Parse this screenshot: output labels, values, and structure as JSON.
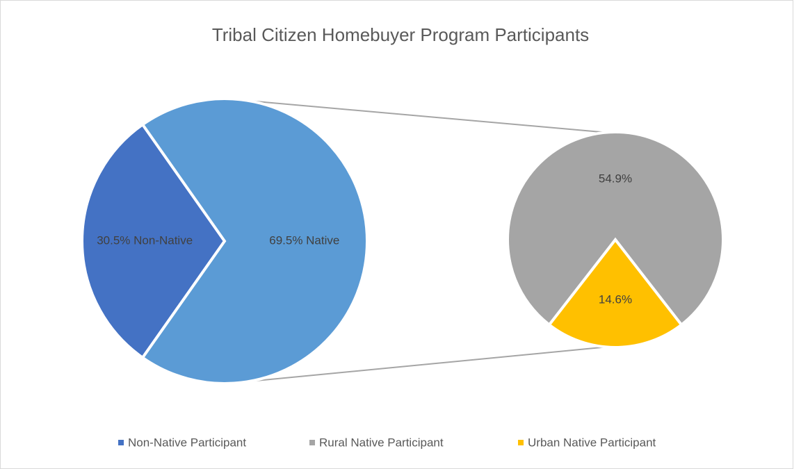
{
  "chart_data": {
    "type": "pie-of-pie",
    "title": "Tribal Citizen Homebuyer Program Participants",
    "main": {
      "values": [
        30.5,
        69.5
      ],
      "value_labels": [
        "30.5% Non-Native",
        "69.5% Native"
      ],
      "colors": [
        "#4472c4",
        "#5b9bd5"
      ]
    },
    "secondary": {
      "values": [
        54.9,
        14.6
      ],
      "value_labels": [
        "54.9%",
        "14.6%"
      ],
      "colors": [
        "#a5a5a5",
        "#ffc000"
      ]
    },
    "legend": [
      "Non-Native Participant",
      "Rural Native Participant",
      "Urban Native Participant"
    ],
    "legend_position": "bottom"
  }
}
